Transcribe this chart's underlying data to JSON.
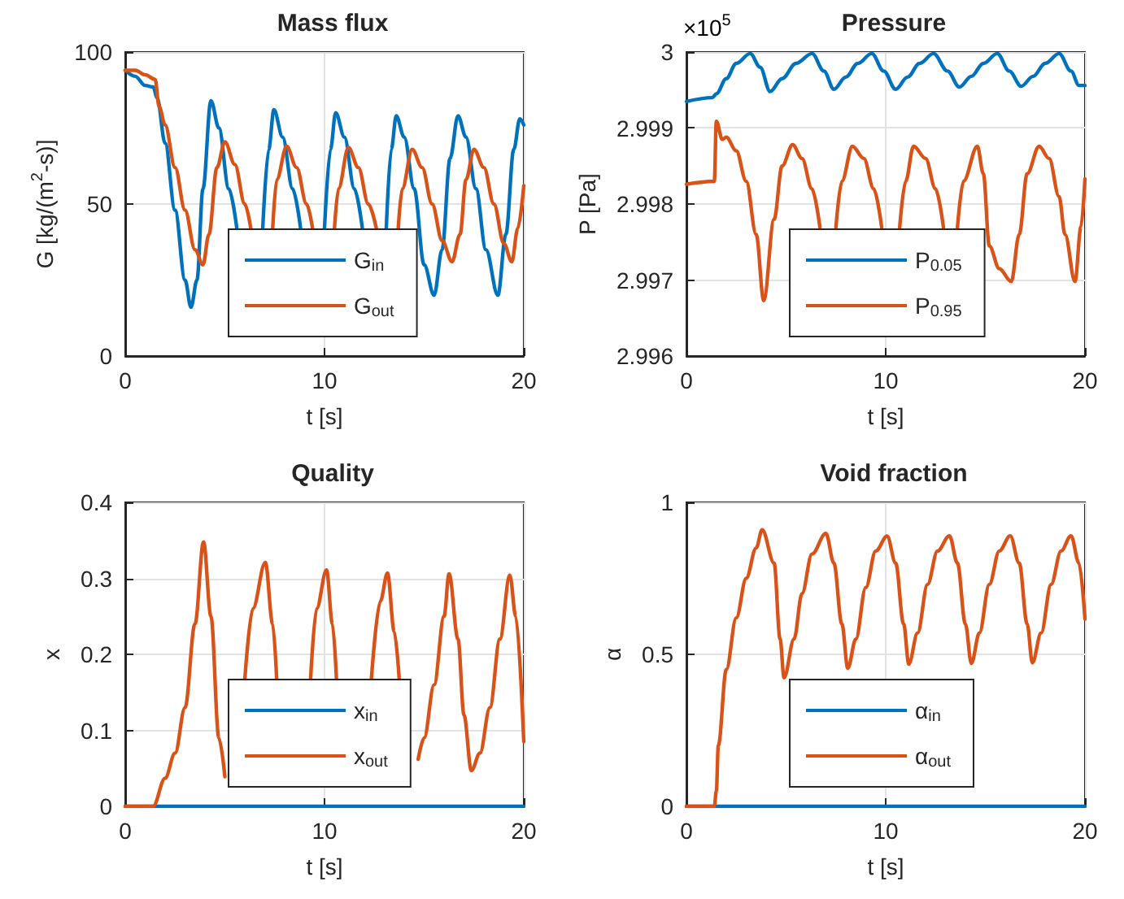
{
  "chart_data": [
    {
      "type": "line",
      "title": "Mass flux",
      "xlabel": "t [s]",
      "ylabel": "G [kg/(m$^{2}$-s)]",
      "xlim": [
        0,
        20
      ],
      "xticks": [
        0,
        10,
        20
      ],
      "ylim": [
        0,
        100
      ],
      "yticks": [
        0,
        50,
        100
      ],
      "grid": true,
      "legend": "bottom",
      "marker": "none",
      "line_style": "solid",
      "series": [
        {
          "name": "G$_{in}$",
          "color": "#0072bd",
          "x": [
            0,
            0.5,
            1.0,
            1.4,
            1.6,
            2.0,
            2.5,
            3.0,
            3.3,
            3.6,
            3.9,
            4.3,
            4.7,
            5.2,
            5.6,
            6.3,
            6.9,
            7.2,
            7.46,
            7.9,
            8.4,
            8.8,
            9.4,
            10.0,
            10.3,
            10.56,
            11.0,
            11.5,
            11.9,
            12.5,
            13.1,
            13.35,
            13.6,
            14.0,
            14.5,
            15.0,
            15.5,
            15.9,
            16.3,
            16.7,
            17.1,
            17.6,
            18.1,
            18.7,
            19.1,
            19.5,
            19.8,
            20
          ],
          "values": [
            94,
            92,
            89,
            88.5,
            85,
            70,
            48,
            25,
            16,
            25,
            55,
            84,
            75,
            55,
            42,
            null,
            42,
            68,
            81,
            72,
            55,
            42,
            null,
            42,
            68,
            80,
            72,
            55,
            42,
            null,
            42,
            68,
            79,
            72,
            55,
            30,
            20,
            35,
            65,
            79,
            72,
            55,
            35,
            20,
            40,
            68,
            78,
            76
          ]
        },
        {
          "name": "G$_{out}$",
          "color": "#d95319",
          "x": [
            0,
            0.5,
            1.0,
            1.5,
            1.7,
            2.0,
            2.5,
            3.0,
            3.5,
            3.9,
            4.2,
            4.6,
            5.0,
            5.5,
            6.0,
            6.3,
            7.1,
            7.4,
            7.6,
            8.1,
            8.6,
            9.1,
            9.4,
            10.2,
            10.5,
            10.7,
            11.2,
            11.7,
            12.2,
            12.6,
            13.3,
            13.7,
            13.9,
            14.4,
            14.9,
            15.4,
            15.9,
            16.4,
            16.8,
            17.1,
            17.5,
            18.0,
            18.5,
            19.0,
            19.4,
            19.7,
            20
          ],
          "values": [
            94,
            94,
            92.5,
            91,
            82,
            76,
            62,
            48,
            35,
            30,
            40,
            62,
            70.5,
            63,
            50,
            42,
            null,
            42,
            58,
            69,
            62,
            50,
            42,
            null,
            42,
            55,
            68.6,
            62,
            50,
            42,
            null,
            42,
            55,
            68,
            62,
            50,
            38,
            31,
            40,
            58,
            68,
            62,
            50,
            37,
            31,
            42,
            56
          ]
        }
      ]
    },
    {
      "type": "line",
      "title": "Pressure",
      "xlabel": "t [s]",
      "ylabel": "P [Pa]",
      "annotations": [
        "×10$^{5}$"
      ],
      "xlim": [
        0,
        20
      ],
      "xticks": [
        0,
        10,
        20
      ],
      "ylim": [
        2.996,
        3
      ],
      "yticks": [
        2.996,
        2.997,
        2.998,
        2.999,
        3
      ],
      "grid": true,
      "legend": "bottom",
      "marker": "none",
      "line_style": "solid",
      "series": [
        {
          "name": "P$_{0.05}$",
          "color": "#0072bd",
          "x": [
            0,
            1.3,
            1.5,
            2.0,
            2.5,
            3.2,
            3.7,
            4.2,
            4.8,
            5.5,
            6.3,
            6.9,
            7.4,
            8.0,
            8.6,
            9.3,
            9.9,
            10.5,
            11.1,
            11.7,
            12.4,
            13.1,
            13.7,
            14.3,
            14.9,
            15.6,
            16.2,
            16.8,
            17.4,
            18.0,
            18.7,
            19.3,
            19.7,
            20
          ],
          "values": [
            2.99935,
            2.9994,
            2.99945,
            2.99965,
            2.99985,
            2.99998,
            2.9998,
            2.99948,
            2.99965,
            2.99985,
            2.99998,
            2.99975,
            2.99951,
            2.99967,
            2.99985,
            2.99998,
            2.99975,
            2.99951,
            2.99967,
            2.99985,
            2.99998,
            2.99975,
            2.99954,
            2.99968,
            2.99985,
            2.99998,
            2.99975,
            2.99955,
            2.99968,
            2.99985,
            2.99998,
            2.99975,
            2.99956,
            2.99956
          ]
        },
        {
          "name": "P$_{0.95}$",
          "color": "#d95319",
          "x": [
            0,
            1.4,
            1.5,
            1.8,
            2.0,
            2.5,
            3.0,
            3.5,
            3.88,
            4.4,
            4.8,
            5.33,
            5.8,
            6.3,
            6.7,
            7.1,
            7.5,
            7.8,
            8.33,
            8.9,
            9.4,
            9.8,
            10.3,
            10.7,
            11.0,
            11.4,
            12.0,
            12.5,
            12.9,
            13.3,
            13.6,
            13.9,
            14.6,
            14.9,
            15.2,
            15.7,
            16.3,
            16.7,
            17.1,
            17.7,
            18.2,
            18.7,
            19.0,
            19.5,
            19.8,
            20
          ],
          "values": [
            2.99826,
            2.9983,
            2.99909,
            2.99885,
            2.99888,
            2.9987,
            2.9983,
            2.9976,
            2.99673,
            2.9978,
            2.9985,
            2.99878,
            2.9986,
            2.9982,
            2.99769,
            null,
            2.99769,
            2.9983,
            2.99876,
            2.9986,
            2.9982,
            2.99769,
            null,
            2.99769,
            2.9983,
            2.99876,
            2.9986,
            2.9982,
            2.99769,
            null,
            2.99769,
            2.9983,
            2.99876,
            2.9984,
            2.99745,
            2.99715,
            2.99698,
            2.9976,
            2.9984,
            2.99876,
            2.9986,
            2.9981,
            2.9976,
            2.99698,
            2.9977,
            2.99833
          ]
        }
      ]
    },
    {
      "type": "line",
      "title": "Quality",
      "xlabel": "t [s]",
      "ylabel": "x",
      "xlim": [
        0,
        20
      ],
      "xticks": [
        0,
        10,
        20
      ],
      "ylim": [
        0,
        0.4
      ],
      "yticks": [
        0,
        0.1,
        0.2,
        0.3,
        0.4
      ],
      "grid": true,
      "legend": "bottom",
      "marker": "none",
      "line_style": "solid",
      "series": [
        {
          "name": "x$_{in}$",
          "color": "#0072bd",
          "x": [
            0,
            20
          ],
          "values": [
            0,
            0
          ]
        },
        {
          "name": "x$_{out}$",
          "color": "#d95319",
          "x": [
            0,
            1.4,
            2.0,
            2.5,
            3.0,
            3.5,
            3.93,
            4.3,
            4.7,
            5.0,
            5.4,
            5.7,
            6.0,
            6.4,
            7.03,
            7.4,
            7.6,
            8.3,
            9.3,
            9.6,
            10.1,
            10.4,
            10.6,
            11.2,
            12.35,
            12.8,
            13.16,
            13.5,
            13.75,
            14.2,
            14.7,
            15.0,
            15.5,
            16.0,
            16.25,
            16.7,
            17.0,
            17.37,
            17.8,
            18.3,
            18.8,
            19.3,
            19.6,
            20
          ],
          "values": [
            0,
            0,
            0.037,
            0.07,
            0.13,
            0.24,
            0.348,
            0.25,
            0.09,
            0.039,
            null,
            null,
            0.167,
            0.26,
            0.321,
            0.24,
            0.167,
            null,
            0.167,
            0.26,
            0.311,
            0.24,
            0.167,
            null,
            0.167,
            0.27,
            0.307,
            0.23,
            0.167,
            null,
            0.062,
            0.09,
            0.16,
            0.25,
            0.306,
            0.22,
            0.12,
            0.047,
            0.07,
            0.13,
            0.22,
            0.304,
            0.25,
            0.085
          ]
        }
      ]
    },
    {
      "type": "line",
      "title": "Void fraction",
      "xlabel": "t [s]",
      "ylabel": "α",
      "xlim": [
        0,
        20
      ],
      "xticks": [
        0,
        10,
        20
      ],
      "ylim": [
        0,
        1
      ],
      "yticks": [
        0,
        0.5,
        1
      ],
      "grid": true,
      "legend": "bottom",
      "marker": "none",
      "line_style": "solid",
      "series": [
        {
          "name": "α$_{in}$",
          "color": "#0072bd",
          "x": [
            0,
            20
          ],
          "values": [
            0,
            0
          ]
        },
        {
          "name": "α$_{out}$",
          "color": "#d95319",
          "x": [
            0,
            1.4,
            1.5,
            1.6,
            2.0,
            2.5,
            3.0,
            3.5,
            3.8,
            4.4,
            4.7,
            4.9,
            5.4,
            5.8,
            6.3,
            7.0,
            7.4,
            7.8,
            8.1,
            8.5,
            9.0,
            9.5,
            10.07,
            10.5,
            10.9,
            11.16,
            11.6,
            12.1,
            12.6,
            13.2,
            13.6,
            14.0,
            14.3,
            14.7,
            15.2,
            15.7,
            16.25,
            16.7,
            17.1,
            17.36,
            17.8,
            18.3,
            18.8,
            19.3,
            19.7,
            20
          ],
          "values": [
            0,
            0,
            0.05,
            0.2,
            0.45,
            0.62,
            0.75,
            0.85,
            0.91,
            0.8,
            0.55,
            0.423,
            0.55,
            0.7,
            0.83,
            0.898,
            0.8,
            0.6,
            0.454,
            0.55,
            0.72,
            0.84,
            0.889,
            0.8,
            0.6,
            0.468,
            0.57,
            0.73,
            0.84,
            0.89,
            0.8,
            0.6,
            0.47,
            0.57,
            0.73,
            0.84,
            0.89,
            0.8,
            0.6,
            0.472,
            0.57,
            0.73,
            0.84,
            0.89,
            0.8,
            0.616
          ]
        }
      ]
    }
  ]
}
